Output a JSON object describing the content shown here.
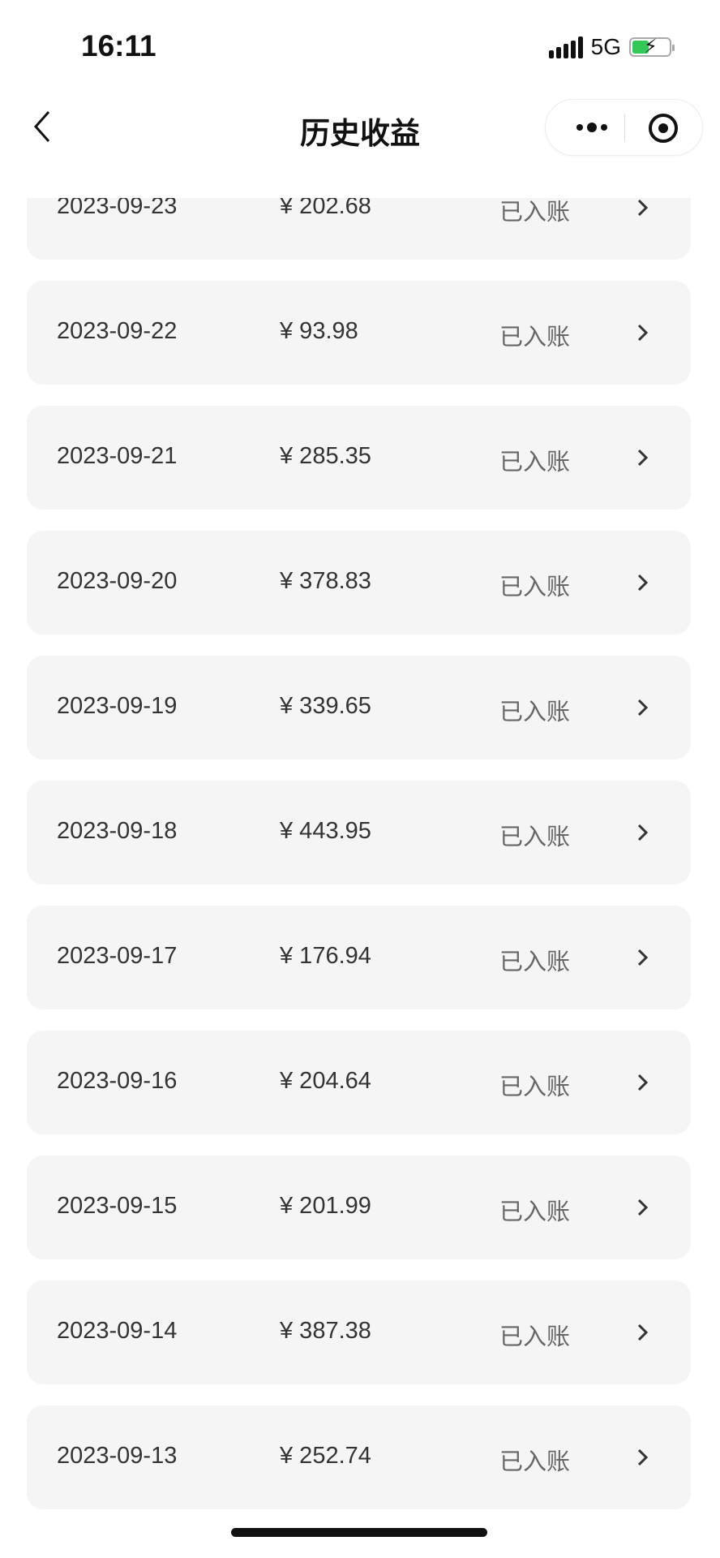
{
  "status_bar": {
    "time": "16:11",
    "network": "5G",
    "battery_charging": true,
    "battery_color": "#34c759"
  },
  "nav": {
    "title": "历史收益",
    "back_icon": "chevron-left-icon",
    "more_icon": "more-dots-icon",
    "close_icon": "target-close-icon"
  },
  "currency_symbol": "¥",
  "records": [
    {
      "date": "2023-09-23",
      "amount": "¥ 202.68",
      "status": "已入账"
    },
    {
      "date": "2023-09-22",
      "amount": "¥ 93.98",
      "status": "已入账"
    },
    {
      "date": "2023-09-21",
      "amount": "¥ 285.35",
      "status": "已入账"
    },
    {
      "date": "2023-09-20",
      "amount": "¥ 378.83",
      "status": "已入账"
    },
    {
      "date": "2023-09-19",
      "amount": "¥ 339.65",
      "status": "已入账"
    },
    {
      "date": "2023-09-18",
      "amount": "¥ 443.95",
      "status": "已入账"
    },
    {
      "date": "2023-09-17",
      "amount": "¥ 176.94",
      "status": "已入账"
    },
    {
      "date": "2023-09-16",
      "amount": "¥ 204.64",
      "status": "已入账"
    },
    {
      "date": "2023-09-15",
      "amount": "¥ 201.99",
      "status": "已入账"
    },
    {
      "date": "2023-09-14",
      "amount": "¥ 387.38",
      "status": "已入账"
    },
    {
      "date": "2023-09-13",
      "amount": "¥ 252.74",
      "status": "已入账"
    }
  ]
}
